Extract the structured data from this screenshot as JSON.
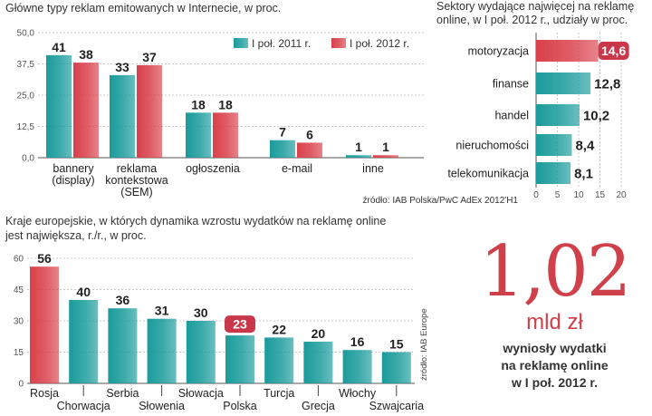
{
  "chart_data": [
    {
      "type": "bar",
      "title": "Główne typy reklam emitowanych w Internecie, w proc.",
      "categories": [
        "bannery\n(display)",
        "reklama\nkontekstowa\n(SEM)",
        "ogłoszenia",
        "e-mail",
        "inne"
      ],
      "series": [
        {
          "name": "I poł. 2011 r.",
          "values": [
            41,
            33,
            18,
            7,
            1
          ],
          "labels": [
            "41",
            "33",
            "18",
            "7",
            "1"
          ]
        },
        {
          "name": "I poł. 2012 r.",
          "values": [
            38,
            37,
            18,
            6,
            1
          ],
          "labels": [
            "38",
            "37",
            "18",
            "6",
            "1"
          ]
        }
      ],
      "ylim": [
        0,
        50
      ],
      "yticks": [
        0,
        12.5,
        25,
        37.5,
        50
      ],
      "ytick_labels": [
        "0,0",
        "12,5",
        "25,0",
        "37,5",
        "50,0"
      ],
      "grid": true,
      "legend": "top-right",
      "colors": [
        "#1a9b9b",
        "#d9404a"
      ]
    },
    {
      "type": "bar",
      "orientation": "horizontal",
      "title": "Sektory wydające najwięcej na reklamę online, w I poł. 2012 r., udziały w proc.",
      "categories": [
        "motoryzacja",
        "finanse",
        "handel",
        "nieruchomości",
        "telekomunikacja"
      ],
      "values": [
        14.6,
        12.8,
        10.2,
        8.4,
        8.1
      ],
      "value_labels": [
        "14,6",
        "12,8",
        "10,2",
        "8,4",
        "8,1"
      ],
      "xlim": [
        0,
        20
      ],
      "xticks": [
        0,
        5,
        10,
        15,
        20
      ],
      "xtick_labels": [
        "0",
        "5",
        "10",
        "15",
        "20"
      ],
      "grid": true,
      "highlight": "motoryzacja",
      "source": "źródło: IAB Polska/PwC AdEx 2012'H1"
    },
    {
      "type": "bar",
      "title": "Kraje europejskie, w których dynamika wzrostu wydatków na reklamę online jest największa, r./r., w proc.",
      "categories": [
        "Rosja",
        "Chorwacja",
        "Serbia",
        "Słowenia",
        "Słowacja",
        "Polska",
        "Turcja",
        "Grecja",
        "Włochy",
        "Szwajcaria"
      ],
      "values": [
        56,
        40,
        36,
        31,
        30,
        23,
        22,
        20,
        16,
        15
      ],
      "value_labels": [
        "56",
        "40",
        "36",
        "31",
        "30",
        "23",
        "22",
        "20",
        "16",
        "15"
      ],
      "ylim": [
        0,
        60
      ],
      "yticks": [
        0,
        15,
        30,
        45,
        60
      ],
      "ytick_labels": [
        "0",
        "15",
        "30",
        "45",
        "60"
      ],
      "grid": true,
      "highlight": [
        "Rosja",
        "Polska"
      ],
      "source": "źródło: IAB Europe"
    }
  ],
  "callout": {
    "value": "1,02",
    "unit": "mld zł",
    "text": "wyniosły wydatki\nna reklamę online\nw I poł. 2012 r."
  },
  "colors": {
    "teal": "#1a9b9b",
    "red": "#d9404a",
    "highlight_label_bg": "#c8374a"
  }
}
